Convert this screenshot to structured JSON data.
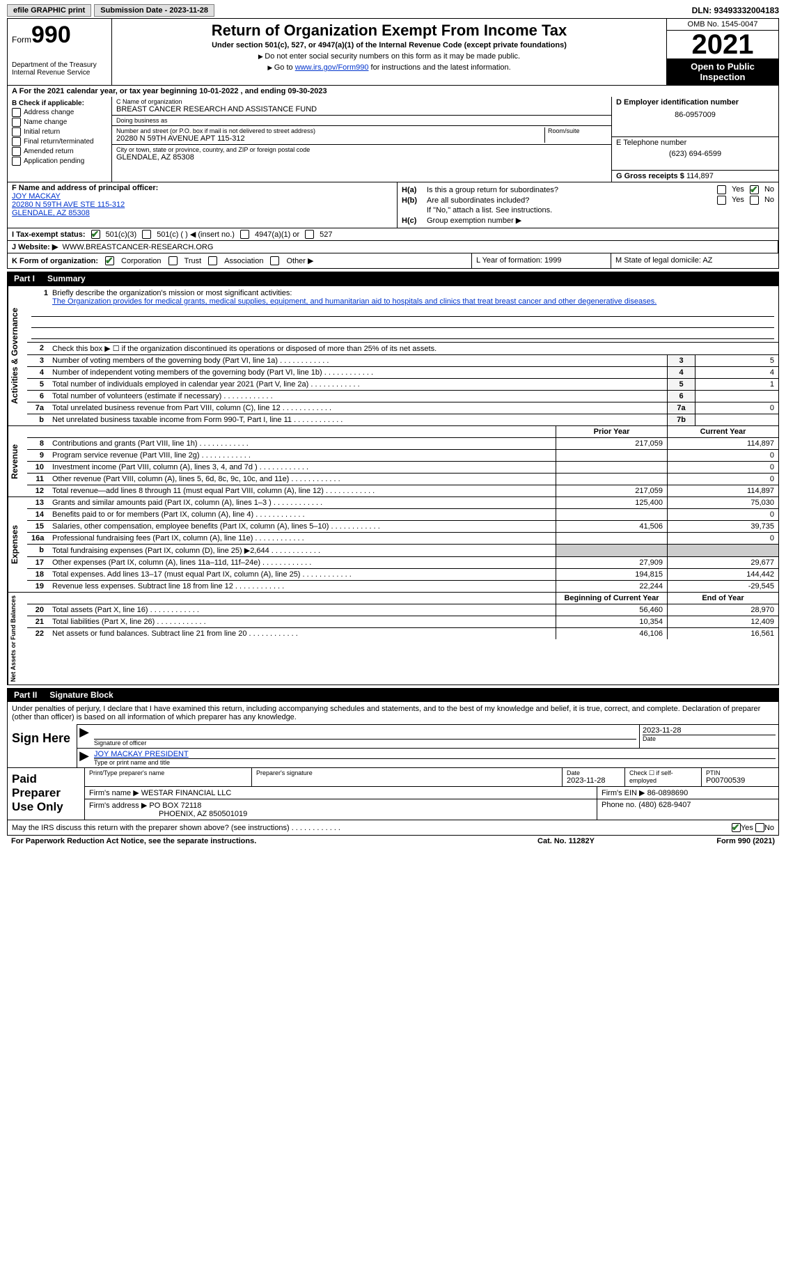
{
  "topbar": {
    "efile": "efile GRAPHIC print",
    "submission": "Submission Date - 2023-11-28",
    "dln": "DLN: 93493332004183"
  },
  "header": {
    "form_label": "Form",
    "form_no": "990",
    "title": "Return of Organization Exempt From Income Tax",
    "subtitle": "Under section 501(c), 527, or 4947(a)(1) of the Internal Revenue Code (except private foundations)",
    "note1": "Do not enter social security numbers on this form as it may be made public.",
    "note2_pre": "Go to ",
    "note2_link": "www.irs.gov/Form990",
    "note2_post": " for instructions and the latest information.",
    "dept": "Department of the Treasury\nInternal Revenue Service",
    "omb": "OMB No. 1545-0047",
    "year": "2021",
    "open": "Open to Public Inspection"
  },
  "row_a": "A  For the 2021 calendar year, or tax year beginning 10-01-2022    , and ending 09-30-2023",
  "col_b": {
    "label": "B Check if applicable:",
    "items": [
      "Address change",
      "Name change",
      "Initial return",
      "Final return/terminated",
      "Amended return",
      "Application pending"
    ]
  },
  "col_c": {
    "name_lbl": "C Name of organization",
    "name": "BREAST CANCER RESEARCH AND ASSISTANCE FUND",
    "dba_lbl": "Doing business as",
    "dba": "",
    "addr_lbl": "Number and street (or P.O. box if mail is not delivered to street address)",
    "room_lbl": "Room/suite",
    "addr": "20280 N 59TH AVENUE APT 115-312",
    "city_lbl": "City or town, state or province, country, and ZIP or foreign postal code",
    "city": "GLENDALE, AZ  85308"
  },
  "col_d": {
    "ein_lbl": "D Employer identification number",
    "ein": "86-0957009",
    "tel_lbl": "E Telephone number",
    "tel": "(623) 694-6599",
    "gross_lbl": "G Gross receipts $",
    "gross": "114,897"
  },
  "col_f": {
    "lbl": "F Name and address of principal officer:",
    "name": "JOY MACKAY",
    "addr1": "20280 N 59TH AVE STE 115-312",
    "addr2": "GLENDALE, AZ  85308"
  },
  "col_h": {
    "a_lbl": "H(a)",
    "a_txt": "Is this a group return for subordinates?",
    "b_lbl": "H(b)",
    "b_txt": "Are all subordinates included?",
    "note": "If \"No,\" attach a list. See instructions.",
    "c_lbl": "H(c)",
    "c_txt": "Group exemption number ▶"
  },
  "status": {
    "lbl": "I   Tax-exempt status:",
    "o1": "501(c)(3)",
    "o2": "501(c) (  ) ◀ (insert no.)",
    "o3": "4947(a)(1) or",
    "o4": "527"
  },
  "row_j": {
    "lbl": "J   Website: ▶",
    "val": "WWW.BREASTCANCER-RESEARCH.ORG"
  },
  "row_k": {
    "lbl": "K Form of organization:",
    "o1": "Corporation",
    "o2": "Trust",
    "o3": "Association",
    "o4": "Other ▶",
    "l": "L Year of formation: 1999",
    "m": "M State of legal domicile: AZ"
  },
  "parts": {
    "p1": "Part I",
    "p1t": "Summary",
    "p2": "Part II",
    "p2t": "Signature Block"
  },
  "summary": {
    "tab1": "Activities & Governance",
    "tab2": "Revenue",
    "tab3": "Expenses",
    "tab4": "Net Assets or Fund Balances",
    "line1_lbl": "Briefly describe the organization's mission or most significant activities:",
    "line1_txt": "The Organization provides for medical grants, medical supplies, equipment, and humanitarian aid to hospitals and clinics that treat breast cancer and other degenerative diseases.",
    "line2": "Check this box ▶ ☐  if the organization discontinued its operations or disposed of more than 25% of its net assets.",
    "rows_ag": [
      {
        "n": "3",
        "t": "Number of voting members of the governing body (Part VI, line 1a)",
        "b": "3",
        "v": "5"
      },
      {
        "n": "4",
        "t": "Number of independent voting members of the governing body (Part VI, line 1b)",
        "b": "4",
        "v": "4"
      },
      {
        "n": "5",
        "t": "Total number of individuals employed in calendar year 2021 (Part V, line 2a)",
        "b": "5",
        "v": "1"
      },
      {
        "n": "6",
        "t": "Total number of volunteers (estimate if necessary)",
        "b": "6",
        "v": ""
      },
      {
        "n": "7a",
        "t": "Total unrelated business revenue from Part VIII, column (C), line 12",
        "b": "7a",
        "v": "0"
      },
      {
        "n": "b",
        "t": "Net unrelated business taxable income from Form 990-T, Part I, line 11",
        "b": "7b",
        "v": ""
      }
    ],
    "hdr_prior": "Prior Year",
    "hdr_curr": "Current Year",
    "rows_rev": [
      {
        "n": "8",
        "t": "Contributions and grants (Part VIII, line 1h)",
        "p": "217,059",
        "c": "114,897"
      },
      {
        "n": "9",
        "t": "Program service revenue (Part VIII, line 2g)",
        "p": "",
        "c": "0"
      },
      {
        "n": "10",
        "t": "Investment income (Part VIII, column (A), lines 3, 4, and 7d )",
        "p": "",
        "c": "0"
      },
      {
        "n": "11",
        "t": "Other revenue (Part VIII, column (A), lines 5, 6d, 8c, 9c, 10c, and 11e)",
        "p": "",
        "c": "0"
      },
      {
        "n": "12",
        "t": "Total revenue—add lines 8 through 11 (must equal Part VIII, column (A), line 12)",
        "p": "217,059",
        "c": "114,897"
      }
    ],
    "rows_exp": [
      {
        "n": "13",
        "t": "Grants and similar amounts paid (Part IX, column (A), lines 1–3 )",
        "p": "125,400",
        "c": "75,030"
      },
      {
        "n": "14",
        "t": "Benefits paid to or for members (Part IX, column (A), line 4)",
        "p": "",
        "c": "0"
      },
      {
        "n": "15",
        "t": "Salaries, other compensation, employee benefits (Part IX, column (A), lines 5–10)",
        "p": "41,506",
        "c": "39,735"
      },
      {
        "n": "16a",
        "t": "Professional fundraising fees (Part IX, column (A), line 11e)",
        "p": "",
        "c": "0"
      },
      {
        "n": "b",
        "t": "Total fundraising expenses (Part IX, column (D), line 25) ▶2,644",
        "p": "shade",
        "c": "shade"
      },
      {
        "n": "17",
        "t": "Other expenses (Part IX, column (A), lines 11a–11d, 11f–24e)",
        "p": "27,909",
        "c": "29,677"
      },
      {
        "n": "18",
        "t": "Total expenses. Add lines 13–17 (must equal Part IX, column (A), line 25)",
        "p": "194,815",
        "c": "144,442"
      },
      {
        "n": "19",
        "t": "Revenue less expenses. Subtract line 18 from line 12",
        "p": "22,244",
        "c": "-29,545"
      }
    ],
    "hdr_beg": "Beginning of Current Year",
    "hdr_end": "End of Year",
    "rows_net": [
      {
        "n": "20",
        "t": "Total assets (Part X, line 16)",
        "p": "56,460",
        "c": "28,970"
      },
      {
        "n": "21",
        "t": "Total liabilities (Part X, line 26)",
        "p": "10,354",
        "c": "12,409"
      },
      {
        "n": "22",
        "t": "Net assets or fund balances. Subtract line 21 from line 20",
        "p": "46,106",
        "c": "16,561"
      }
    ]
  },
  "sig": {
    "decl": "Under penalties of perjury, I declare that I have examined this return, including accompanying schedules and statements, and to the best of my knowledge and belief, it is true, correct, and complete. Declaration of preparer (other than officer) is based on all information of which preparer has any knowledge.",
    "sign_here": "Sign Here",
    "sig_lbl": "Signature of officer",
    "date": "2023-11-28",
    "date_lbl": "Date",
    "name": "JOY MACKAY  PRESIDENT",
    "name_lbl": "Type or print name and title",
    "paid": "Paid Preparer Use Only",
    "prep_name_lbl": "Print/Type preparer's name",
    "prep_sig_lbl": "Preparer's signature",
    "prep_date_lbl": "Date",
    "prep_date": "2023-11-28",
    "prep_check_lbl": "Check ☐ if self-employed",
    "ptin_lbl": "PTIN",
    "ptin": "P00700539",
    "firm_name_lbl": "Firm's name    ▶",
    "firm_name": "WESTAR FINANCIAL LLC",
    "firm_ein_lbl": "Firm's EIN ▶",
    "firm_ein": "86-0898690",
    "firm_addr_lbl": "Firm's address ▶",
    "firm_addr1": "PO BOX 72118",
    "firm_addr2": "PHOENIX, AZ  850501019",
    "firm_phone_lbl": "Phone no.",
    "firm_phone": "(480) 628-9407"
  },
  "footer_q": "May the IRS discuss this return with the preparer shown above? (see instructions)",
  "footer": {
    "l": "For Paperwork Reduction Act Notice, see the separate instructions.",
    "m": "Cat. No. 11282Y",
    "r": "Form 990 (2021)"
  },
  "yn": {
    "yes": "Yes",
    "no": "No"
  }
}
